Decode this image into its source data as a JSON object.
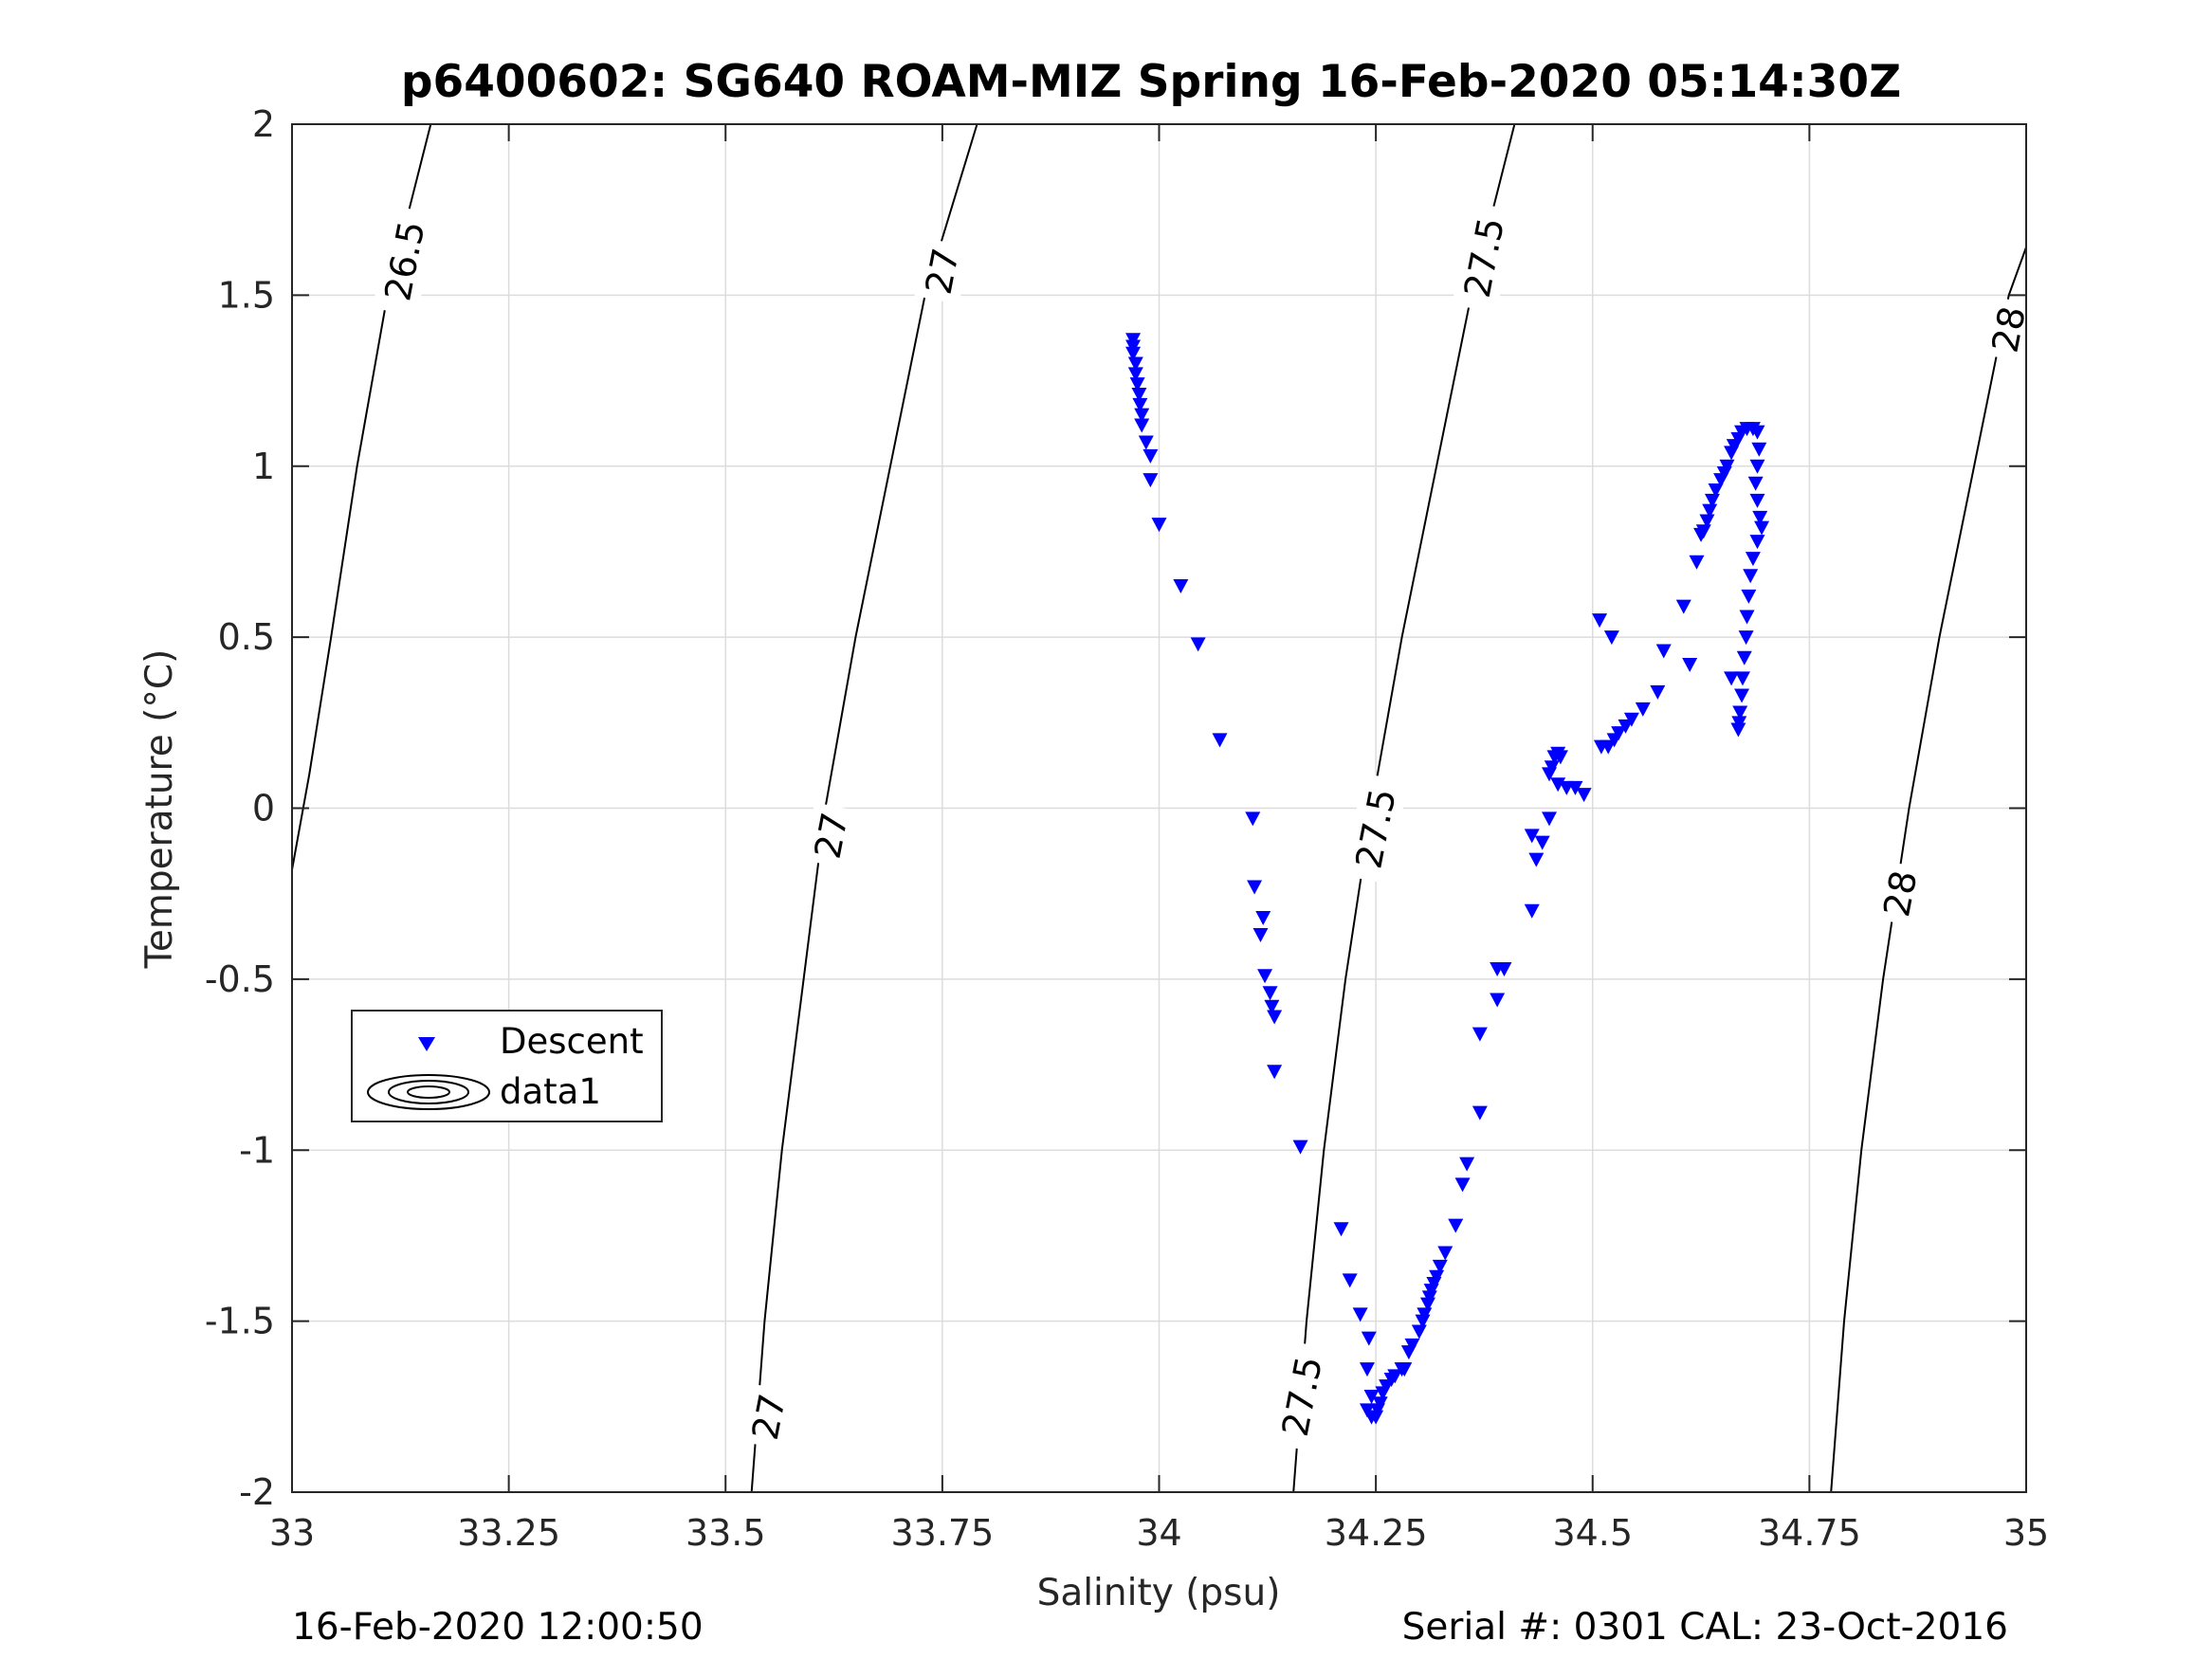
{
  "title": "p6400602: SG640 ROAM-MIZ Spring 16-Feb-2020 05:14:30Z",
  "footer": {
    "left": "16-Feb-2020 12:00:50",
    "right": "Serial #: 0301  CAL: 23-Oct-2016"
  },
  "chart_data": {
    "type": "scatter",
    "title": "p6400602: SG640 ROAM-MIZ Spring 16-Feb-2020 05:14:30Z",
    "xlabel": "Salinity (psu)",
    "ylabel": "Temperature (°C)",
    "xlim": [
      33,
      35
    ],
    "ylim": [
      -2,
      2
    ],
    "grid": true,
    "legend_position": "lower-left",
    "x_ticks": [
      33,
      33.25,
      33.5,
      33.75,
      34,
      34.25,
      34.5,
      34.75,
      35
    ],
    "x_tick_labels": [
      "33",
      "33.25",
      "33.5",
      "33.75",
      "34",
      "34.25",
      "34.5",
      "34.75",
      "35"
    ],
    "y_ticks": [
      -2,
      -1.5,
      -1,
      -0.5,
      0,
      0.5,
      1,
      1.5,
      2
    ],
    "y_tick_labels": [
      "-2",
      "-1.5",
      "-1",
      "-0.5",
      "0",
      "0.5",
      "1",
      "1.5",
      "2"
    ],
    "legend": [
      {
        "label": "Descent",
        "marker": "triangle-down",
        "color": "#0000ff"
      },
      {
        "label": "data1",
        "marker": "contour"
      }
    ],
    "series": [
      {
        "name": "Descent",
        "marker": "triangle-down",
        "color": "#0000ff",
        "points": [
          [
            33.97,
            1.37
          ],
          [
            33.97,
            1.35
          ],
          [
            33.97,
            1.33
          ],
          [
            33.973,
            1.3
          ],
          [
            33.973,
            1.27
          ],
          [
            33.975,
            1.24
          ],
          [
            33.977,
            1.21
          ],
          [
            33.978,
            1.18
          ],
          [
            33.98,
            1.15
          ],
          [
            33.98,
            1.12
          ],
          [
            33.985,
            1.07
          ],
          [
            33.99,
            1.03
          ],
          [
            33.99,
            0.96
          ],
          [
            34.0,
            0.83
          ],
          [
            34.025,
            0.65
          ],
          [
            34.045,
            0.48
          ],
          [
            34.07,
            0.2
          ],
          [
            34.108,
            -0.03
          ],
          [
            34.11,
            -0.23
          ],
          [
            34.12,
            -0.32
          ],
          [
            34.117,
            -0.37
          ],
          [
            34.122,
            -0.49
          ],
          [
            34.128,
            -0.54
          ],
          [
            34.13,
            -0.58
          ],
          [
            34.133,
            -0.61
          ],
          [
            34.133,
            -0.77
          ],
          [
            34.163,
            -0.99
          ],
          [
            34.21,
            -1.23
          ],
          [
            34.22,
            -1.38
          ],
          [
            34.232,
            -1.48
          ],
          [
            34.242,
            -1.55
          ],
          [
            34.24,
            -1.64
          ],
          [
            34.245,
            -1.72
          ],
          [
            34.24,
            -1.76
          ],
          [
            34.245,
            -1.78
          ],
          [
            34.25,
            -1.78
          ],
          [
            34.252,
            -1.76
          ],
          [
            34.255,
            -1.74
          ],
          [
            34.258,
            -1.71
          ],
          [
            34.262,
            -1.69
          ],
          [
            34.268,
            -1.67
          ],
          [
            34.272,
            -1.66
          ],
          [
            34.28,
            -1.64
          ],
          [
            34.283,
            -1.64
          ],
          [
            34.288,
            -1.59
          ],
          [
            34.292,
            -1.57
          ],
          [
            34.3,
            -1.53
          ],
          [
            34.304,
            -1.5
          ],
          [
            34.306,
            -1.48
          ],
          [
            34.31,
            -1.45
          ],
          [
            34.312,
            -1.43
          ],
          [
            34.314,
            -1.41
          ],
          [
            34.317,
            -1.39
          ],
          [
            34.32,
            -1.37
          ],
          [
            34.324,
            -1.34
          ],
          [
            34.33,
            -1.3
          ],
          [
            34.342,
            -1.22
          ],
          [
            34.35,
            -1.1
          ],
          [
            34.355,
            -1.04
          ],
          [
            34.37,
            -0.89
          ],
          [
            34.37,
            -0.66
          ],
          [
            34.39,
            -0.56
          ],
          [
            34.39,
            -0.47
          ],
          [
            34.398,
            -0.47
          ],
          [
            34.43,
            -0.3
          ],
          [
            34.435,
            -0.15
          ],
          [
            34.43,
            -0.08
          ],
          [
            34.442,
            -0.1
          ],
          [
            34.45,
            -0.03
          ],
          [
            34.45,
            0.1
          ],
          [
            34.453,
            0.12
          ],
          [
            34.456,
            0.15
          ],
          [
            34.46,
            0.16
          ],
          [
            34.463,
            0.15
          ],
          [
            34.46,
            0.07
          ],
          [
            34.47,
            0.06
          ],
          [
            34.48,
            0.06
          ],
          [
            34.49,
            0.04
          ],
          [
            34.51,
            0.18
          ],
          [
            34.518,
            0.18
          ],
          [
            34.525,
            0.2
          ],
          [
            34.53,
            0.22
          ],
          [
            34.538,
            0.24
          ],
          [
            34.545,
            0.26
          ],
          [
            34.558,
            0.29
          ],
          [
            34.575,
            0.34
          ],
          [
            34.582,
            0.46
          ],
          [
            34.605,
            0.59
          ],
          [
            34.612,
            0.42
          ],
          [
            34.62,
            0.72
          ],
          [
            34.625,
            0.8
          ],
          [
            34.628,
            0.81
          ],
          [
            34.632,
            0.84
          ],
          [
            34.635,
            0.87
          ],
          [
            34.638,
            0.9
          ],
          [
            34.642,
            0.93
          ],
          [
            34.648,
            0.96
          ],
          [
            34.652,
            0.98
          ],
          [
            34.655,
            1.0
          ],
          [
            34.66,
            1.04
          ],
          [
            34.663,
            1.06
          ],
          [
            34.668,
            1.08
          ],
          [
            34.672,
            1.1
          ],
          [
            34.678,
            1.11
          ],
          [
            34.685,
            1.11
          ],
          [
            34.69,
            1.1
          ],
          [
            34.692,
            1.05
          ],
          [
            34.69,
            1.0
          ],
          [
            34.688,
            0.95
          ],
          [
            34.69,
            0.9
          ],
          [
            34.693,
            0.85
          ],
          [
            34.695,
            0.82
          ],
          [
            34.69,
            0.78
          ],
          [
            34.685,
            0.73
          ],
          [
            34.682,
            0.68
          ],
          [
            34.68,
            0.62
          ],
          [
            34.678,
            0.56
          ],
          [
            34.677,
            0.5
          ],
          [
            34.675,
            0.44
          ],
          [
            34.673,
            0.38
          ],
          [
            34.672,
            0.33
          ],
          [
            34.67,
            0.28
          ],
          [
            34.669,
            0.25
          ],
          [
            34.668,
            0.23
          ],
          [
            34.66,
            0.38
          ],
          [
            34.508,
            0.55
          ],
          [
            34.522,
            0.5
          ]
        ]
      }
    ],
    "contours": [
      {
        "label": "26.5",
        "points": [
          [
            33.0,
            -0.18
          ],
          [
            33.02,
            0.1
          ],
          [
            33.045,
            0.5
          ],
          [
            33.075,
            1.0
          ],
          [
            33.11,
            1.5
          ],
          [
            33.16,
            2.0
          ]
        ]
      },
      {
        "label": "27",
        "points": [
          [
            33.53,
            -2.0
          ],
          [
            33.545,
            -1.5
          ],
          [
            33.565,
            -1.0
          ],
          [
            33.59,
            -0.5
          ],
          [
            33.615,
            0.0
          ],
          [
            33.65,
            0.5
          ],
          [
            33.69,
            1.0
          ],
          [
            33.73,
            1.5
          ],
          [
            33.79,
            2.0
          ]
        ]
      },
      {
        "label": "27.5",
        "points": [
          [
            34.155,
            -2.0
          ],
          [
            34.17,
            -1.5
          ],
          [
            34.19,
            -1.0
          ],
          [
            34.215,
            -0.5
          ],
          [
            34.245,
            0.0
          ],
          [
            34.28,
            0.5
          ],
          [
            34.32,
            1.0
          ],
          [
            34.36,
            1.5
          ],
          [
            34.41,
            2.0
          ]
        ]
      },
      {
        "label": "28",
        "points": [
          [
            34.775,
            -2.0
          ],
          [
            34.79,
            -1.5
          ],
          [
            34.81,
            -1.0
          ],
          [
            34.835,
            -0.5
          ],
          [
            34.865,
            0.0
          ],
          [
            34.9,
            0.5
          ],
          [
            34.94,
            1.0
          ],
          [
            34.98,
            1.5
          ],
          [
            35.0,
            1.64
          ]
        ]
      }
    ],
    "contour_labels": [
      {
        "text": "26.5",
        "x": 33.13,
        "y": 1.6
      },
      {
        "text": "27",
        "x": 33.622,
        "y": -0.08
      },
      {
        "text": "27",
        "x": 33.75,
        "y": 1.57
      },
      {
        "text": "27",
        "x": 33.55,
        "y": -1.78
      },
      {
        "text": "27.5",
        "x": 34.25,
        "y": -0.06
      },
      {
        "text": "27.5",
        "x": 34.375,
        "y": 1.61
      },
      {
        "text": "27.5",
        "x": 34.165,
        "y": -1.72
      },
      {
        "text": "28",
        "x": 34.855,
        "y": -0.25
      },
      {
        "text": "28",
        "x": 34.98,
        "y": 1.4
      }
    ]
  }
}
